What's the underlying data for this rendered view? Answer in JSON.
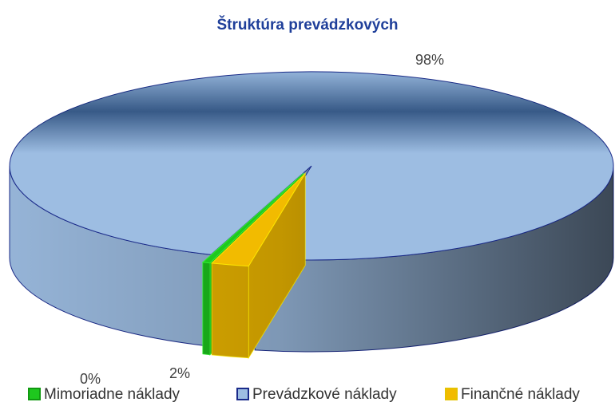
{
  "chart_data": {
    "type": "pie",
    "title": "Štruktúra prevádzkových",
    "series": [
      {
        "name": "Mimoriadne náklady",
        "color": "#1ec81e",
        "value": 0.4,
        "value_label": "0%"
      },
      {
        "name": "Prevádzkové náklady",
        "color": "#9dbde2",
        "value": 97.6,
        "value_label": "98%"
      },
      {
        "name": "Finančné náklady",
        "color": "#f2bb00",
        "value": 2,
        "value_label": "2%"
      }
    ],
    "legend": "bottom"
  }
}
